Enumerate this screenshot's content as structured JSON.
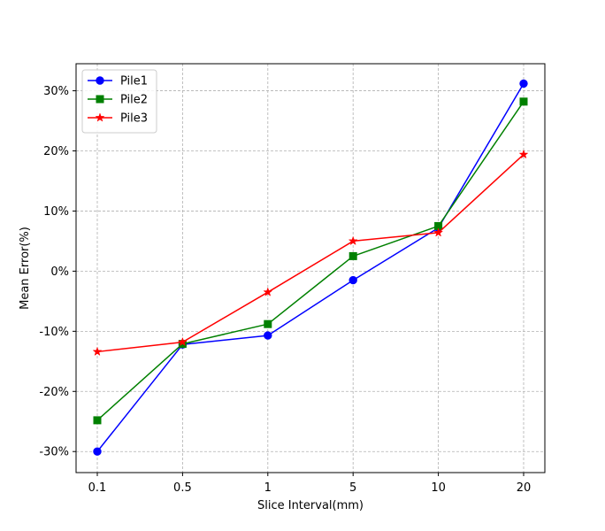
{
  "chart_data": {
    "type": "line",
    "categories": [
      "0.1",
      "0.5",
      "1",
      "5",
      "10",
      "20"
    ],
    "xlabel": "Slice Interval(mm)",
    "ylabel": "Mean Error(%)",
    "ylim": [
      -33.5,
      34.5
    ],
    "yticks": [
      -30,
      -20,
      -10,
      0,
      10,
      20,
      30
    ],
    "ytick_labels": [
      "-30%",
      "-20%",
      "-10%",
      "0%",
      "10%",
      "20%",
      "30%"
    ],
    "grid": true,
    "legend_position": "top-left",
    "series": [
      {
        "name": "Pile1",
        "color": "#0000ff",
        "marker": "circle",
        "values": [
          -30.0,
          -12.2,
          -10.7,
          -1.5,
          7.2,
          31.2
        ]
      },
      {
        "name": "Pile2",
        "color": "#008000",
        "marker": "square",
        "values": [
          -24.8,
          -12.1,
          -8.8,
          2.5,
          7.5,
          28.2
        ]
      },
      {
        "name": "Pile3",
        "color": "#ff0000",
        "marker": "star",
        "values": [
          -13.4,
          -11.8,
          -3.5,
          5.0,
          6.4,
          19.4
        ]
      }
    ]
  }
}
